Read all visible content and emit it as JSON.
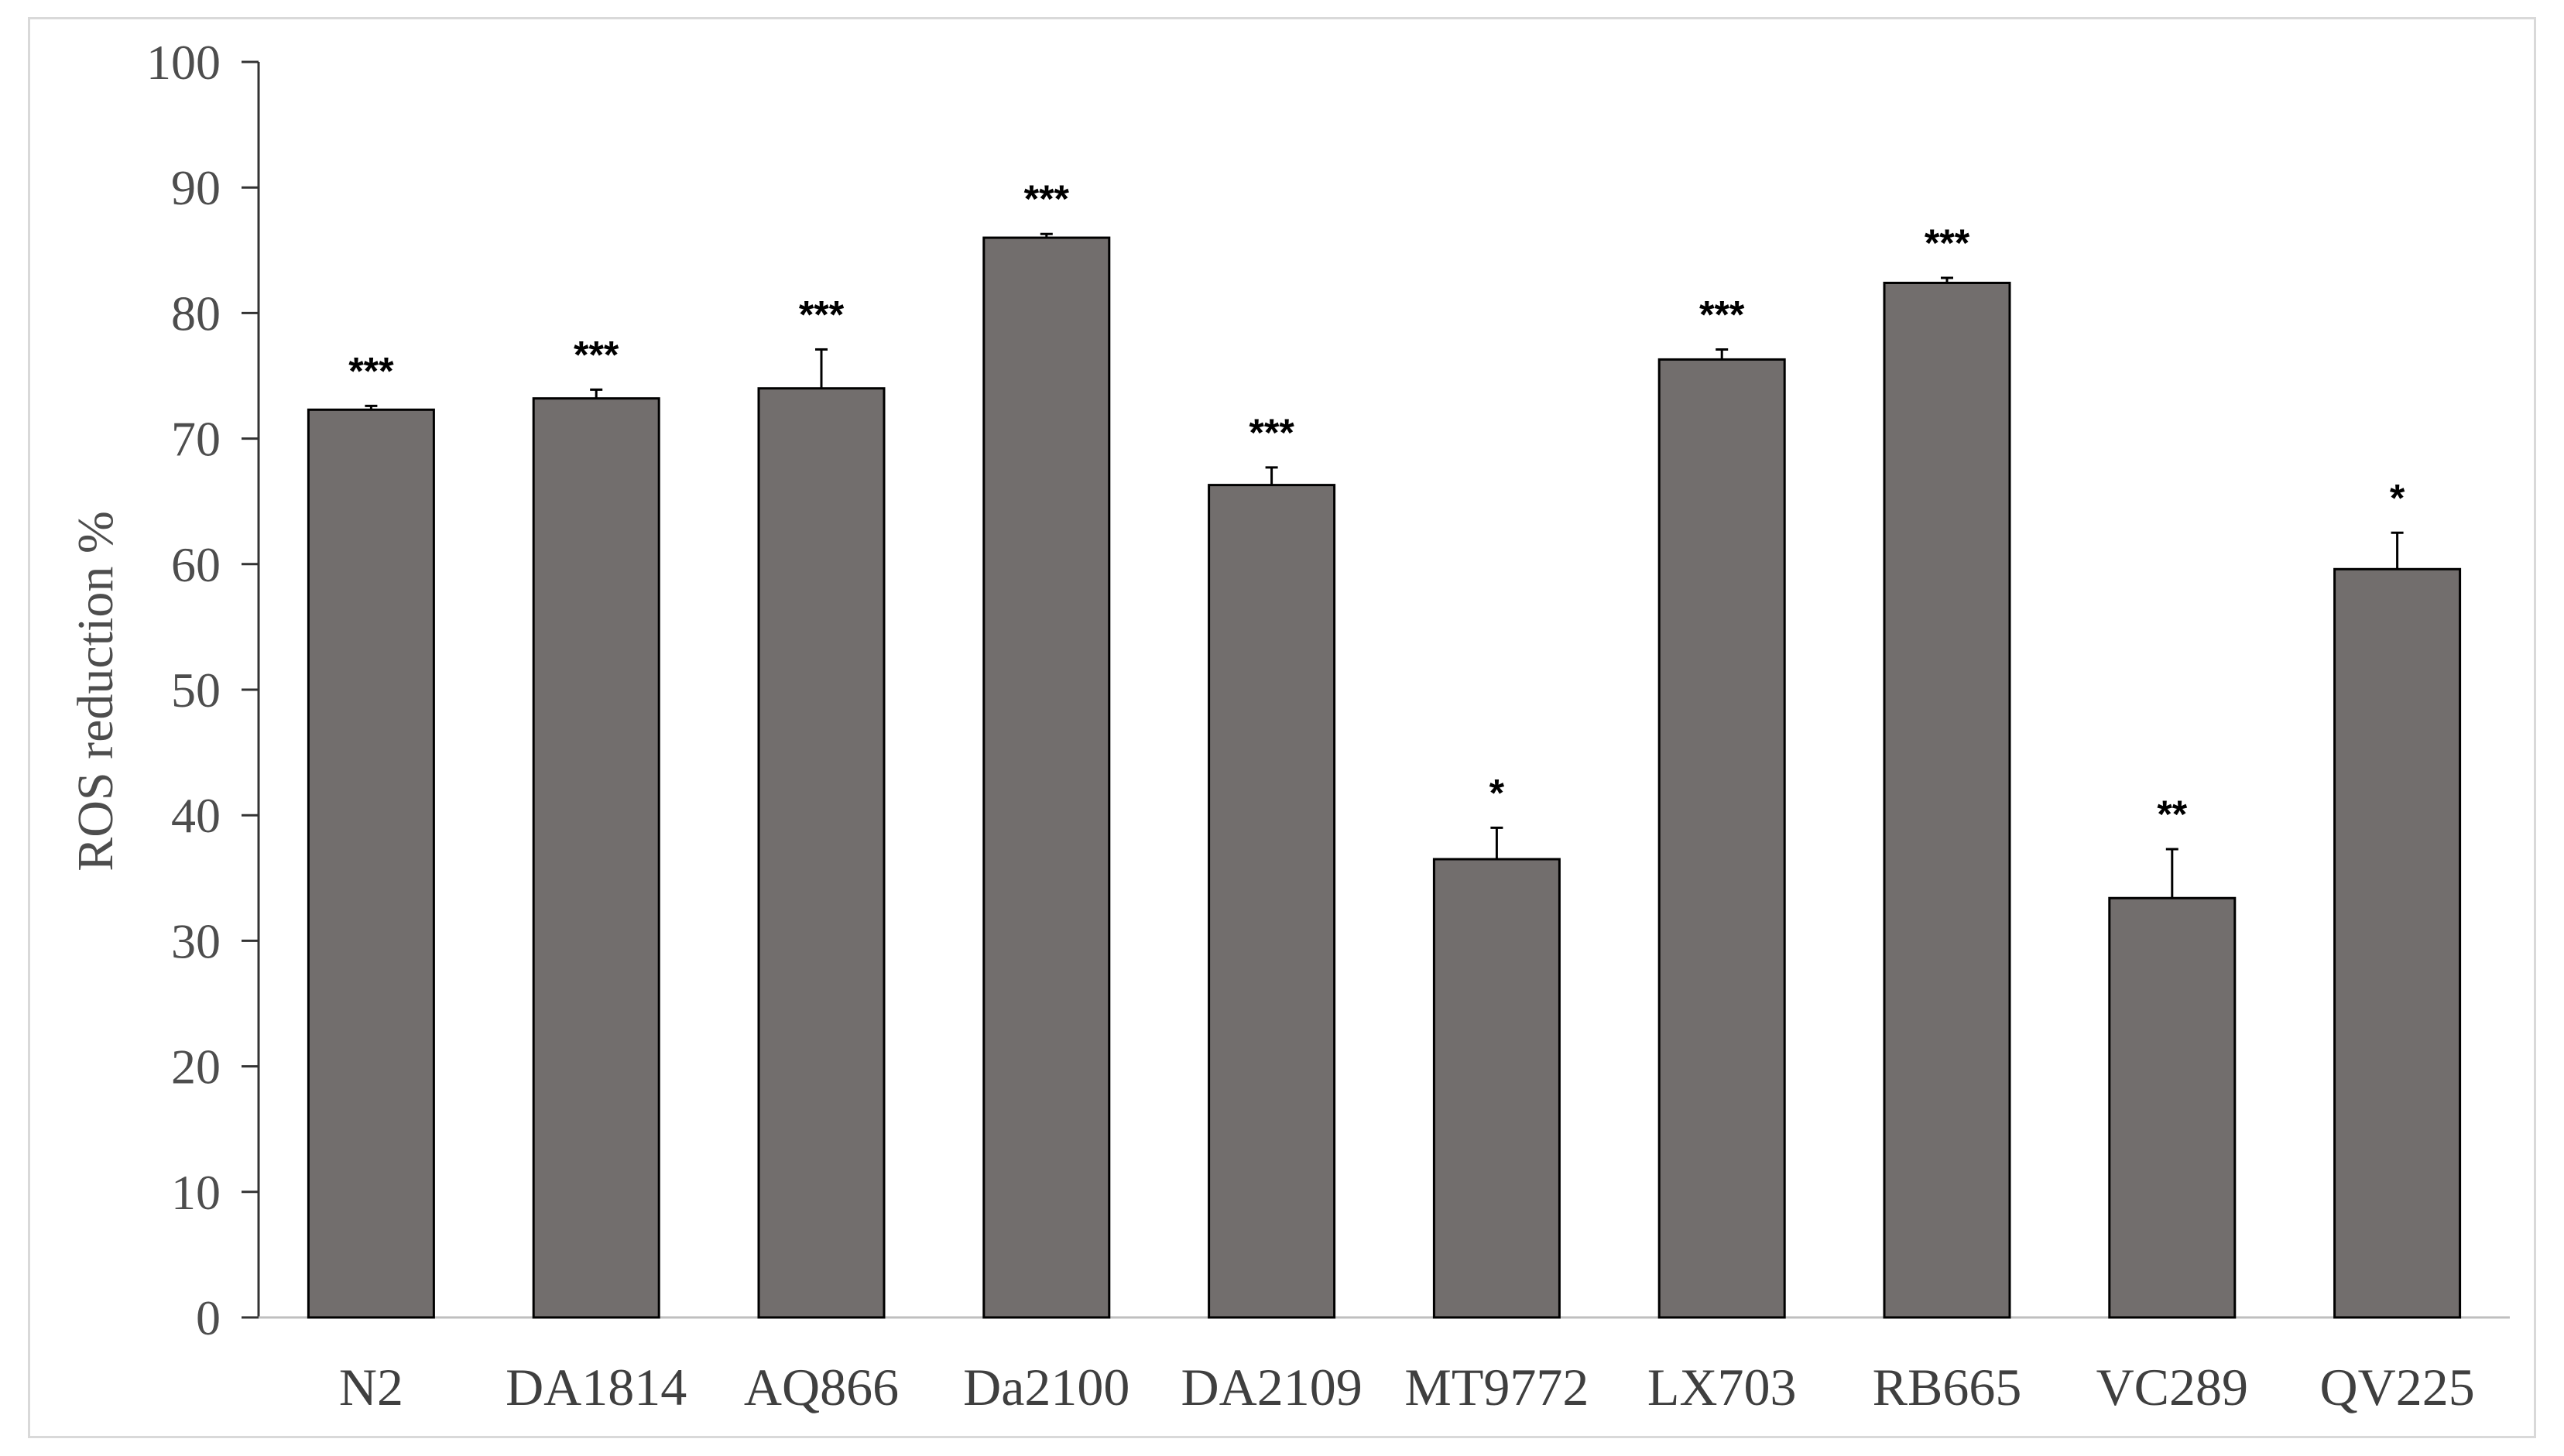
{
  "chart_data": {
    "type": "bar",
    "title": "",
    "xlabel": "",
    "ylabel": "ROS reduction %",
    "ylim": [
      0,
      100
    ],
    "yticks": [
      0,
      10,
      20,
      30,
      40,
      50,
      60,
      70,
      80,
      90,
      100
    ],
    "grid": false,
    "legend": "none",
    "bar_color": "#726e6d",
    "categories": [
      "N2",
      "DA1814",
      "AQ866",
      "Da2100",
      "DA2109",
      "MT9772",
      "LX703",
      "RB665",
      "VC289",
      "QV225"
    ],
    "values": [
      72.3,
      73.2,
      74.0,
      86.0,
      66.3,
      36.5,
      76.3,
      82.4,
      33.4,
      59.6
    ],
    "error": [
      0.3,
      0.7,
      3.1,
      0.3,
      1.4,
      2.5,
      0.8,
      0.4,
      3.9,
      2.9
    ],
    "significance": [
      "***",
      "***",
      "***",
      "***",
      "***",
      "*",
      "***",
      "***",
      "**",
      "*"
    ]
  }
}
